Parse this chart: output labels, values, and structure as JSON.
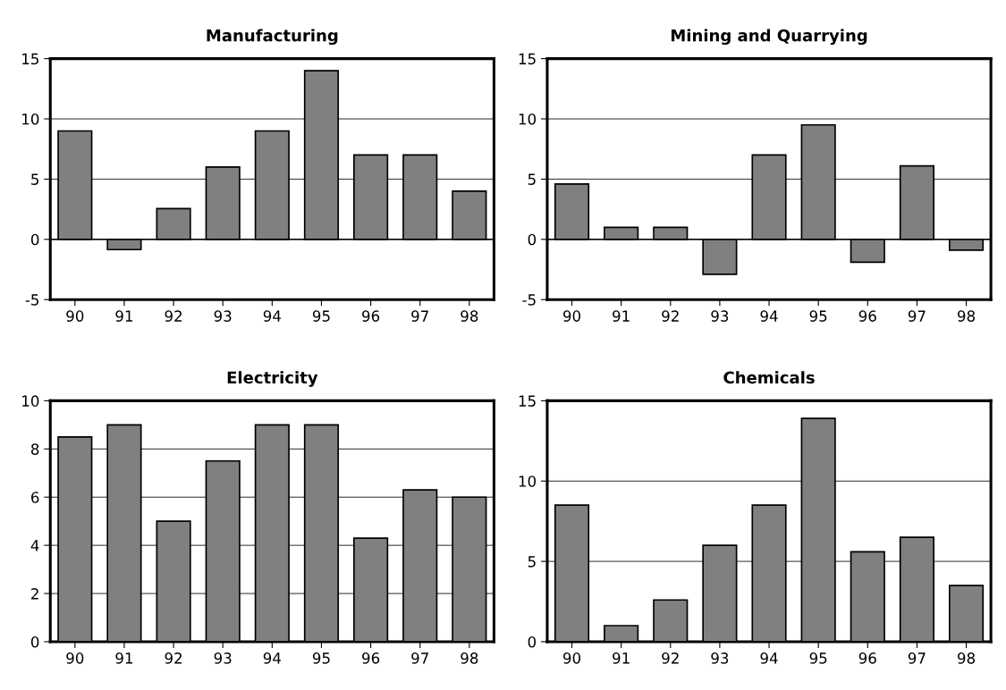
{
  "chart_data": [
    {
      "type": "bar",
      "title": "Manufacturing",
      "categories": [
        "90",
        "91",
        "92",
        "93",
        "94",
        "95",
        "96",
        "97",
        "98"
      ],
      "values": [
        9,
        -0.85,
        2.55,
        6,
        9,
        14,
        7,
        7,
        4
      ],
      "color": "#808080",
      "ylim": [
        -5,
        15
      ],
      "yticks": [
        -5,
        0,
        5,
        10,
        15
      ],
      "grid": "y"
    },
    {
      "type": "bar",
      "title": "Mining and Quarrying",
      "categories": [
        "90",
        "91",
        "92",
        "93",
        "94",
        "95",
        "96",
        "97",
        "98"
      ],
      "values": [
        4.6,
        1,
        1,
        -2.9,
        7,
        9.5,
        -1.9,
        6.1,
        -0.9
      ],
      "color": "#808080",
      "ylim": [
        -5,
        15
      ],
      "yticks": [
        -5,
        0,
        5,
        10,
        15
      ],
      "grid": "y"
    },
    {
      "type": "bar",
      "title": "Electricity",
      "categories": [
        "90",
        "91",
        "92",
        "93",
        "94",
        "95",
        "96",
        "97",
        "98"
      ],
      "values": [
        8.5,
        9,
        5,
        7.5,
        9,
        9,
        4.3,
        6.3,
        6
      ],
      "color": "#808080",
      "ylim": [
        0,
        10
      ],
      "yticks": [
        0,
        2,
        4,
        6,
        8,
        10
      ],
      "grid": "y"
    },
    {
      "type": "bar",
      "title": "Chemicals",
      "categories": [
        "90",
        "91",
        "92",
        "93",
        "94",
        "95",
        "96",
        "97",
        "98"
      ],
      "values": [
        8.5,
        1,
        2.6,
        6,
        8.5,
        13.9,
        5.6,
        6.5,
        3.5
      ],
      "color": "#808080",
      "ylim": [
        0,
        15
      ],
      "yticks": [
        0,
        5,
        10,
        15
      ],
      "grid": "y"
    }
  ]
}
